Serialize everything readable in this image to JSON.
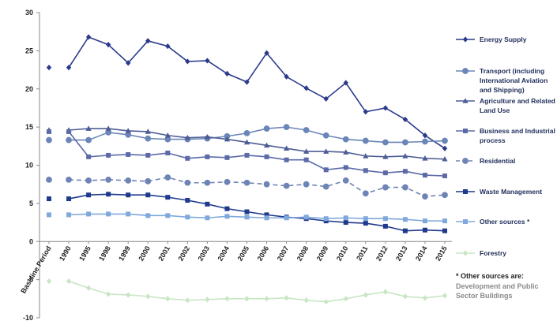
{
  "chart_data": {
    "type": "line",
    "categories": [
      "Baseline Period",
      "1990",
      "1995",
      "1998",
      "1999",
      "2000",
      "2001",
      "2002",
      "2003",
      "2004",
      "2005",
      "2006",
      "2007",
      "2008",
      "2009",
      "2010",
      "2011",
      "2012",
      "2013",
      "2014",
      "2015"
    ],
    "ylim": [
      -10,
      30
    ],
    "yticks": [
      -10,
      -5,
      0,
      5,
      10,
      15,
      20,
      25,
      30
    ],
    "grid": false,
    "legend_position": "right",
    "series": [
      {
        "name": "Energy Supply",
        "color": "#2b3a8c",
        "marker": "diamond",
        "dashed": false,
        "values": [
          22.8,
          22.8,
          26.8,
          25.8,
          23.4,
          26.3,
          25.6,
          23.6,
          23.7,
          22.0,
          20.9,
          24.7,
          21.6,
          20.1,
          18.7,
          20.8,
          17.0,
          17.5,
          16.0,
          13.9,
          12.2
        ]
      },
      {
        "name": "Transport (including International Aviation and Shipping)",
        "color": "#6a85b8",
        "marker": "circle",
        "dashed": false,
        "values": [
          13.3,
          13.3,
          13.3,
          14.3,
          14.0,
          13.5,
          13.4,
          13.4,
          13.5,
          13.8,
          14.2,
          14.8,
          15.0,
          14.6,
          13.9,
          13.4,
          13.2,
          13.0,
          13.0,
          13.1,
          13.2
        ]
      },
      {
        "name": "Agriculture and Related Land Use",
        "color": "#4e5d96",
        "marker": "triangle",
        "dashed": false,
        "values": [
          14.6,
          14.6,
          14.8,
          14.8,
          14.5,
          14.4,
          13.9,
          13.6,
          13.7,
          13.4,
          13.0,
          12.6,
          12.2,
          11.8,
          11.8,
          11.7,
          11.2,
          11.1,
          11.2,
          10.9,
          10.8
        ]
      },
      {
        "name": "Business and Industrial process",
        "color": "#5c6aa8",
        "marker": "square",
        "dashed": false,
        "values": [
          14.4,
          14.4,
          11.1,
          11.3,
          11.4,
          11.3,
          11.6,
          10.9,
          11.1,
          11.0,
          11.3,
          11.1,
          10.7,
          10.7,
          9.4,
          9.7,
          9.3,
          9.0,
          9.2,
          8.7,
          8.6
        ]
      },
      {
        "name": "Residential",
        "color": "#6e84b6",
        "marker": "circle",
        "dashed": true,
        "values": [
          8.1,
          8.1,
          8.0,
          8.1,
          8.0,
          7.9,
          8.4,
          7.7,
          7.7,
          7.8,
          7.7,
          7.5,
          7.3,
          7.5,
          7.2,
          8.0,
          6.3,
          7.1,
          7.1,
          5.9,
          6.1
        ]
      },
      {
        "name": "Waste Management",
        "color": "#1f3a8c",
        "marker": "square",
        "dashed": false,
        "values": [
          5.6,
          5.6,
          6.1,
          6.2,
          6.1,
          6.1,
          5.8,
          5.4,
          4.9,
          4.3,
          3.9,
          3.5,
          3.2,
          3.0,
          2.7,
          2.5,
          2.4,
          2.0,
          1.4,
          1.5,
          1.4
        ]
      },
      {
        "name": "Other sources *",
        "color": "#7fa8dc",
        "marker": "square",
        "dashed": false,
        "values": [
          3.5,
          3.5,
          3.6,
          3.6,
          3.6,
          3.4,
          3.4,
          3.2,
          3.1,
          3.3,
          3.2,
          3.1,
          3.1,
          3.2,
          3.0,
          3.1,
          3.0,
          3.0,
          2.9,
          2.7,
          2.7
        ]
      },
      {
        "name": "Forestry",
        "color": "#c9e6c5",
        "marker": "diamond",
        "dashed": false,
        "values": [
          -5.2,
          -5.2,
          -6.1,
          -6.9,
          -7.0,
          -7.2,
          -7.5,
          -7.7,
          -7.6,
          -7.5,
          -7.5,
          -7.5,
          -7.4,
          -7.7,
          -7.9,
          -7.5,
          -7.0,
          -6.6,
          -7.2,
          -7.4,
          -7.1
        ]
      }
    ],
    "note_title": "* Other sources are:",
    "note_body": "Development and Public Sector Buildings"
  }
}
